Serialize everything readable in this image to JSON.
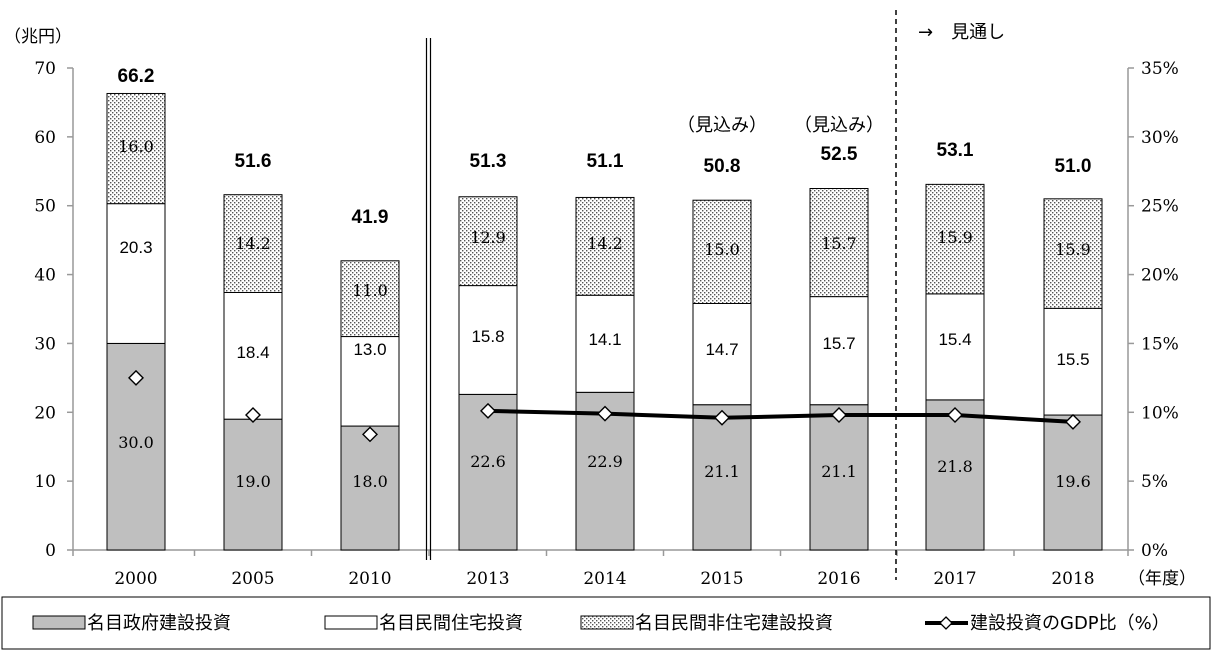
{
  "chart_data": {
    "type": "bar",
    "stacked": true,
    "y_unit_label": "（兆円）",
    "x_unit_label": "（年度）",
    "categories": [
      "2000",
      "2005",
      "2010",
      "2013",
      "2014",
      "2015",
      "2016",
      "2017",
      "2018"
    ],
    "series": [
      {
        "name": "名目政府建設投資",
        "color": "#bfbfbf",
        "values": [
          30.0,
          19.0,
          18.0,
          22.6,
          22.9,
          21.1,
          21.1,
          21.8,
          19.6
        ],
        "labels": [
          "30.0",
          "19.0",
          "18.0",
          "22.6",
          "22.9",
          "21.1",
          "21.1",
          "21.8",
          "19.6"
        ]
      },
      {
        "name": "名目民間住宅投資",
        "color": "#ffffff",
        "values": [
          20.3,
          18.4,
          13.0,
          15.8,
          14.1,
          14.7,
          15.7,
          15.4,
          15.5
        ],
        "labels": [
          "20.3",
          "18.4",
          "13.0",
          "15.8",
          "14.1",
          "14.7",
          "15.7",
          "15.4",
          "15.5"
        ]
      },
      {
        "name": "名目民間非住宅建設投資",
        "pattern": "dots",
        "values": [
          16.0,
          14.2,
          11.0,
          12.9,
          14.2,
          15.0,
          15.7,
          15.9,
          15.9
        ],
        "labels": [
          "16.0",
          "14.2",
          "11.0",
          "12.9",
          "14.2",
          "15.0",
          "15.7",
          "15.9",
          "15.9"
        ]
      }
    ],
    "totals": [
      "66.2",
      "51.6",
      "41.9",
      "51.3",
      "51.1",
      "50.8",
      "52.5",
      "53.1",
      "51.0"
    ],
    "line_series": {
      "name": "建設投資のGDP比（%）",
      "axis": "right",
      "values": [
        12.5,
        9.8,
        8.4,
        10.1,
        9.9,
        9.6,
        9.8,
        9.8,
        9.3
      ],
      "connected_from_index": 3
    },
    "ylim": [
      0,
      70
    ],
    "yticks": [
      "0",
      "10",
      "20",
      "30",
      "40",
      "50",
      "60",
      "70"
    ],
    "y2lim": [
      0,
      35
    ],
    "y2ticks": [
      "0%",
      "5%",
      "10%",
      "15%",
      "20%",
      "25%",
      "30%",
      "35%"
    ],
    "annotations": {
      "estimate_label": "（見込み）",
      "estimate_indices": [
        5,
        6
      ],
      "forecast_label": "→　見通し",
      "forecast_boundary_index": 7
    },
    "legend": {
      "position": "bottom",
      "items": [
        "名目政府建設投資",
        "名目民間住宅投資",
        "名目民間非住宅建設投資",
        "建設投資のGDP比（%）"
      ]
    }
  }
}
